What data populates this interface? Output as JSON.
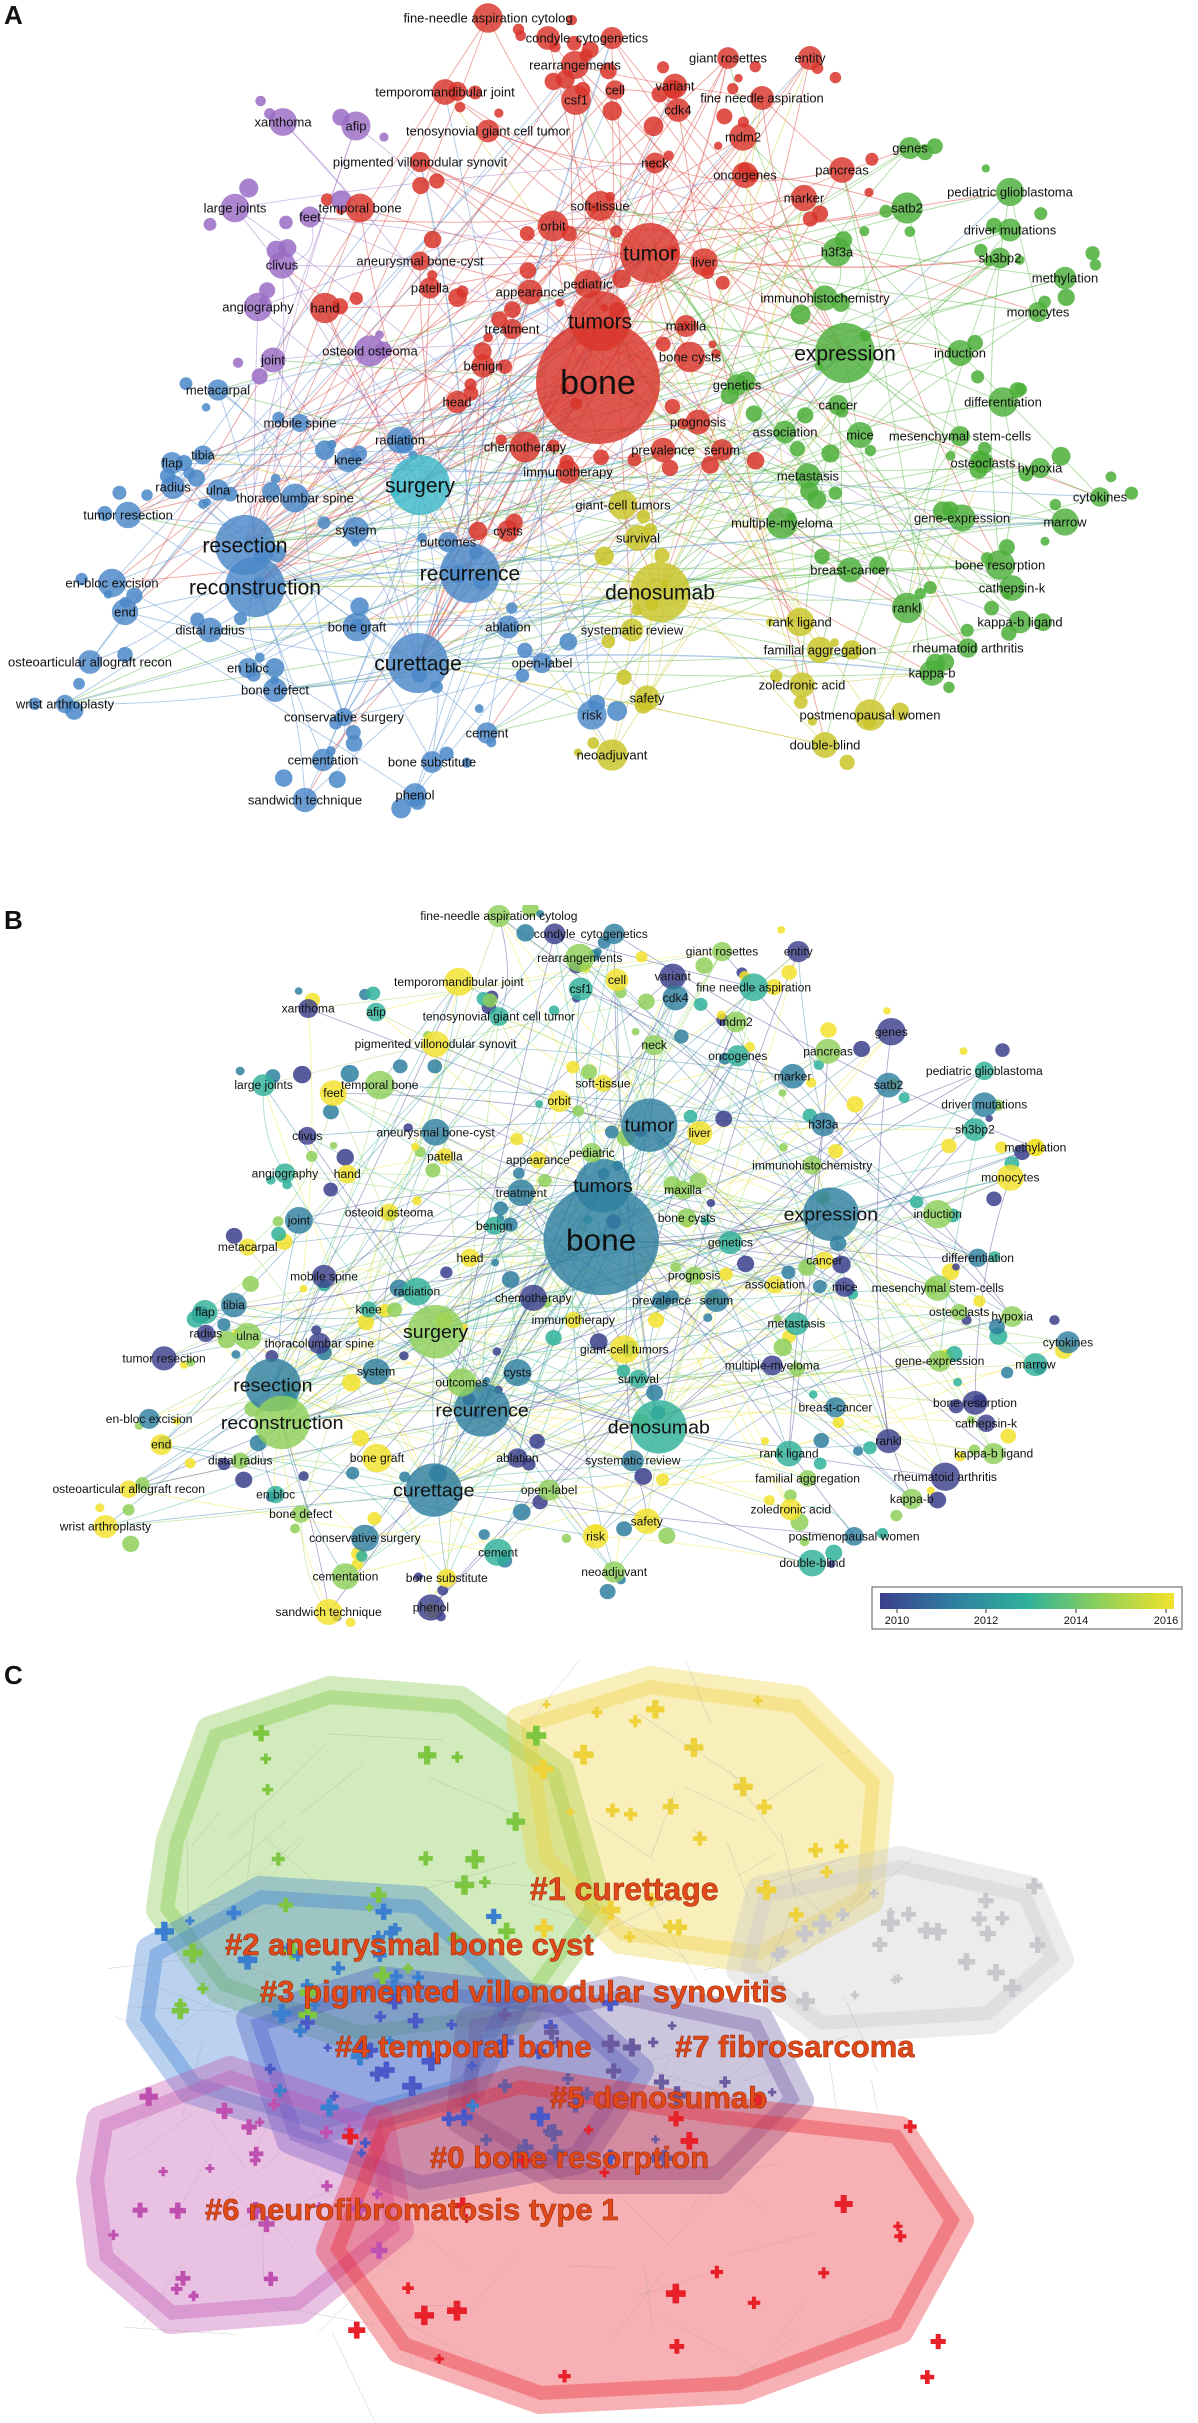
{
  "panels": {
    "a": "A",
    "b": "B",
    "c": "C"
  },
  "network_a": {
    "edge_colors": {
      "red": "#d9352b",
      "green": "#4caf3a",
      "blue": "#4a88c8",
      "yellow": "#c9c427",
      "purple": "#9a6cc4",
      "cyan": "#3fb8c9",
      "orange": "#ee8b22"
    },
    "nodes": [
      {
        "label": "bone",
        "c": "red",
        "s": 3
      },
      {
        "label": "tumor",
        "c": "red",
        "s": 2
      },
      {
        "label": "tumors",
        "c": "red",
        "s": 2
      },
      {
        "label": "soft-tissue",
        "c": "red",
        "s": 1
      },
      {
        "label": "benign",
        "c": "red",
        "s": 1
      },
      {
        "label": "treatment",
        "c": "red",
        "s": 1
      },
      {
        "label": "appearance",
        "c": "red",
        "s": 1
      },
      {
        "label": "pediatric",
        "c": "red",
        "s": 1
      },
      {
        "label": "patella",
        "c": "red",
        "s": 1
      },
      {
        "label": "temporal bone",
        "c": "red",
        "s": 1
      },
      {
        "label": "aneurysmal bone-cyst",
        "c": "red",
        "s": 1
      },
      {
        "label": "hand",
        "c": "red",
        "s": 1
      },
      {
        "label": "pigmented villonodular synovit",
        "c": "red",
        "s": 1
      },
      {
        "label": "tenosynovial giant cell tumor",
        "c": "red",
        "s": 1
      },
      {
        "label": "temporomandibular joint",
        "c": "red",
        "s": 1
      },
      {
        "label": "fine-needle aspiration cytolog",
        "c": "red",
        "s": 1
      },
      {
        "label": "condyle",
        "c": "red",
        "s": 1
      },
      {
        "label": "cytogenetics",
        "c": "red",
        "s": 1
      },
      {
        "label": "rearrangements",
        "c": "red",
        "s": 1
      },
      {
        "label": "giant rosettes",
        "c": "red",
        "s": 1
      },
      {
        "label": "entity",
        "c": "red",
        "s": 1
      },
      {
        "label": "csf1",
        "c": "red",
        "s": 1
      },
      {
        "label": "cell",
        "c": "red",
        "s": 1
      },
      {
        "label": "variant",
        "c": "red",
        "s": 1
      },
      {
        "label": "cdk4",
        "c": "red",
        "s": 1
      },
      {
        "label": "fine needle aspiration",
        "c": "red",
        "s": 1
      },
      {
        "label": "mdm2",
        "c": "red",
        "s": 1
      },
      {
        "label": "neck",
        "c": "red",
        "s": 1
      },
      {
        "label": "oncogenes",
        "c": "red",
        "s": 1
      },
      {
        "label": "pancreas",
        "c": "red",
        "s": 1
      },
      {
        "label": "marker",
        "c": "red",
        "s": 1
      },
      {
        "label": "liver",
        "c": "red",
        "s": 1
      },
      {
        "label": "maxilla",
        "c": "red",
        "s": 1
      },
      {
        "label": "bone cysts",
        "c": "red",
        "s": 1
      },
      {
        "label": "prognosis",
        "c": "red",
        "s": 1
      },
      {
        "label": "head",
        "c": "red",
        "s": 1
      },
      {
        "label": "chemotherapy",
        "c": "red",
        "s": 1
      },
      {
        "label": "immunotherapy",
        "c": "red",
        "s": 1
      },
      {
        "label": "prevalence",
        "c": "red",
        "s": 1
      },
      {
        "label": "serum",
        "c": "red",
        "s": 1
      },
      {
        "label": "cysts",
        "c": "red",
        "s": 1
      },
      {
        "label": "orbit",
        "c": "red",
        "s": 1
      },
      {
        "label": "xanthoma",
        "c": "purple",
        "s": 1
      },
      {
        "label": "afip",
        "c": "purple",
        "s": 1
      },
      {
        "label": "large joints",
        "c": "purple",
        "s": 1
      },
      {
        "label": "feet",
        "c": "purple",
        "s": 1
      },
      {
        "label": "clivus",
        "c": "purple",
        "s": 1
      },
      {
        "label": "angiography",
        "c": "purple",
        "s": 1
      },
      {
        "label": "joint",
        "c": "purple",
        "s": 1
      },
      {
        "label": "osteoid osteoma",
        "c": "purple",
        "s": 1
      },
      {
        "label": "expression",
        "c": "green",
        "s": 2
      },
      {
        "label": "immunohistochemistry",
        "c": "green",
        "s": 1
      },
      {
        "label": "h3f3a",
        "c": "green",
        "s": 1
      },
      {
        "label": "genes",
        "c": "green",
        "s": 1
      },
      {
        "label": "pediatric glioblastoma",
        "c": "green",
        "s": 1
      },
      {
        "label": "driver mutations",
        "c": "green",
        "s": 1
      },
      {
        "label": "sh3bp2",
        "c": "green",
        "s": 1
      },
      {
        "label": "methylation",
        "c": "green",
        "s": 1
      },
      {
        "label": "monocytes",
        "c": "green",
        "s": 1
      },
      {
        "label": "satb2",
        "c": "green",
        "s": 1
      },
      {
        "label": "induction",
        "c": "green",
        "s": 1
      },
      {
        "label": "differentiation",
        "c": "green",
        "s": 1
      },
      {
        "label": "cancer",
        "c": "green",
        "s": 1
      },
      {
        "label": "genetics",
        "c": "green",
        "s": 1
      },
      {
        "label": "association",
        "c": "green",
        "s": 1
      },
      {
        "label": "mice",
        "c": "green",
        "s": 1
      },
      {
        "label": "mesenchymal stem-cells",
        "c": "green",
        "s": 1
      },
      {
        "label": "osteoclasts",
        "c": "green",
        "s": 1
      },
      {
        "label": "hypoxia",
        "c": "green",
        "s": 1
      },
      {
        "label": "metastasis",
        "c": "green",
        "s": 1
      },
      {
        "label": "cytokines",
        "c": "green",
        "s": 1
      },
      {
        "label": "gene-expression",
        "c": "green",
        "s": 1
      },
      {
        "label": "marrow",
        "c": "green",
        "s": 1
      },
      {
        "label": "multiple-myeloma",
        "c": "green",
        "s": 1
      },
      {
        "label": "breast-cancer",
        "c": "green",
        "s": 1
      },
      {
        "label": "bone resorption",
        "c": "green",
        "s": 1
      },
      {
        "label": "cathepsin-k",
        "c": "green",
        "s": 1
      },
      {
        "label": "rankl",
        "c": "green",
        "s": 1
      },
      {
        "label": "kappa-b ligand",
        "c": "green",
        "s": 1
      },
      {
        "label": "rheumatoid arthritis",
        "c": "green",
        "s": 1
      },
      {
        "label": "kappa-b",
        "c": "green",
        "s": 1
      },
      {
        "label": "denosumab",
        "c": "yellow",
        "s": 2
      },
      {
        "label": "giant-cell tumors",
        "c": "yellow",
        "s": 1
      },
      {
        "label": "survival",
        "c": "yellow",
        "s": 1
      },
      {
        "label": "rank ligand",
        "c": "yellow",
        "s": 1
      },
      {
        "label": "familial aggregation",
        "c": "yellow",
        "s": 1
      },
      {
        "label": "systematic review",
        "c": "yellow",
        "s": 1
      },
      {
        "label": "zoledronic acid",
        "c": "yellow",
        "s": 1
      },
      {
        "label": "safety",
        "c": "yellow",
        "s": 1
      },
      {
        "label": "postmenopausal women",
        "c": "yellow",
        "s": 1
      },
      {
        "label": "double-blind",
        "c": "yellow",
        "s": 1
      },
      {
        "label": "neoadjuvant",
        "c": "yellow",
        "s": 1
      },
      {
        "label": "recurrence",
        "c": "blue",
        "s": 2
      },
      {
        "label": "curettage",
        "c": "blue",
        "s": 2
      },
      {
        "label": "resection",
        "c": "blue",
        "s": 2
      },
      {
        "label": "reconstruction",
        "c": "blue",
        "s": 2
      },
      {
        "label": "surgery",
        "c": "cyan",
        "s": 2
      },
      {
        "label": "knee",
        "c": "blue",
        "s": 1
      },
      {
        "label": "mobile spine",
        "c": "blue",
        "s": 1
      },
      {
        "label": "metacarpal",
        "c": "blue",
        "s": 1
      },
      {
        "label": "tibia",
        "c": "blue",
        "s": 1
      },
      {
        "label": "flap",
        "c": "blue",
        "s": 1
      },
      {
        "label": "radius",
        "c": "blue",
        "s": 1
      },
      {
        "label": "ulna",
        "c": "blue",
        "s": 1
      },
      {
        "label": "thoracolumbar spine",
        "c": "blue",
        "s": 1
      },
      {
        "label": "tumor resection",
        "c": "blue",
        "s": 1
      },
      {
        "label": "radiation",
        "c": "blue",
        "s": 1
      },
      {
        "label": "system",
        "c": "blue",
        "s": 1
      },
      {
        "label": "outcomes",
        "c": "blue",
        "s": 1
      },
      {
        "label": "en-bloc excision",
        "c": "blue",
        "s": 1
      },
      {
        "label": "end",
        "c": "blue",
        "s": 1
      },
      {
        "label": "distal radius",
        "c": "blue",
        "s": 1
      },
      {
        "label": "bone graft",
        "c": "blue",
        "s": 1
      },
      {
        "label": "ablation",
        "c": "blue",
        "s": 1
      },
      {
        "label": "open-label",
        "c": "blue",
        "s": 1
      },
      {
        "label": "osteoarticular allograft recon",
        "c": "blue",
        "s": 1
      },
      {
        "label": "en bloc",
        "c": "blue",
        "s": 1
      },
      {
        "label": "bone defect",
        "c": "blue",
        "s": 1
      },
      {
        "label": "wrist arthroplasty",
        "c": "blue",
        "s": 1
      },
      {
        "label": "conservative surgery",
        "c": "blue",
        "s": 1
      },
      {
        "label": "cement",
        "c": "blue",
        "s": 1
      },
      {
        "label": "risk",
        "c": "blue",
        "s": 1
      },
      {
        "label": "cementation",
        "c": "blue",
        "s": 1
      },
      {
        "label": "bone substitute",
        "c": "blue",
        "s": 1
      },
      {
        "label": "phenol",
        "c": "blue",
        "s": 1
      },
      {
        "label": "sandwich technique",
        "c": "blue",
        "s": 1
      }
    ]
  },
  "legend_b": {
    "ticks": [
      "2010",
      "2012",
      "2014",
      "2016"
    ],
    "colors": [
      "#3b3f8c",
      "#2f7fa0",
      "#2fb19a",
      "#8fd05a",
      "#f2e22b"
    ]
  },
  "clusters_c": [
    {
      "label": "#1 curettage",
      "color": "#efd23a"
    },
    {
      "label": "#2 aneurysmal bone cyst",
      "color": "#7cc640"
    },
    {
      "label": "#3 pigmented villonodular synovitis",
      "color": "#3a7fd0"
    },
    {
      "label": "#4 temporal bone",
      "color": "#4a58c8"
    },
    {
      "label": "#7 fibrosarcoma",
      "color": "#c8c8cc"
    },
    {
      "label": "#5 denosumab",
      "color": "#6a5aa0"
    },
    {
      "label": "#0 bone resorption",
      "color": "#e8202a"
    },
    {
      "label": "#6 neurofibromatosis type 1",
      "color": "#c050b0"
    }
  ]
}
